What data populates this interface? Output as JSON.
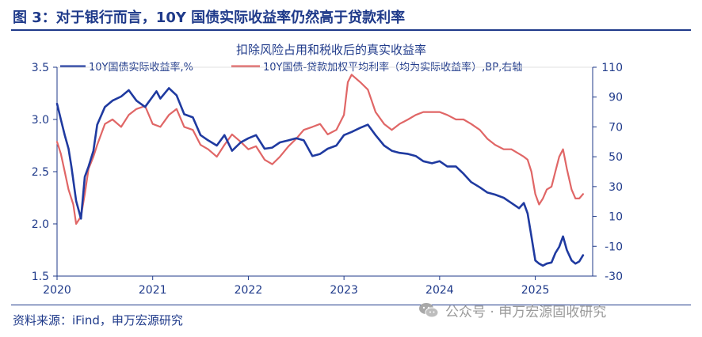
{
  "header": {
    "title": "图 3：对于银行而言，10Y 国债实际收益率仍然高于贷款利率"
  },
  "footer": {
    "source": "资料来源：iFind，申万宏源研究",
    "watermark": "公众号 · 申万宏源固收研究"
  },
  "chart_data": {
    "type": "line",
    "title": "扣除风险占用和税收后的真实收益率",
    "xlabel": "",
    "ylabel": "",
    "x_ticks": [
      "2020",
      "2021",
      "2022",
      "2023",
      "2024",
      "2025"
    ],
    "x_range": [
      2020.0,
      2025.6
    ],
    "y_left": {
      "ticks": [
        "1.5",
        "2.0",
        "2.5",
        "3.0",
        "3.5"
      ],
      "range": [
        1.5,
        3.5
      ]
    },
    "y_right": {
      "ticks": [
        "-30",
        "-10",
        "10",
        "30",
        "50",
        "70",
        "90",
        "110"
      ],
      "range": [
        -30,
        110
      ]
    },
    "legend_position": "top",
    "grid": false,
    "series": [
      {
        "name": "10Y国债实际收益率,%",
        "axis": "left",
        "color": "#1f3aa0",
        "x": [
          2020.0,
          2020.04,
          2020.08,
          2020.12,
          2020.15,
          2020.2,
          2020.25,
          2020.29,
          2020.33,
          2020.38,
          2020.42,
          2020.5,
          2020.58,
          2020.67,
          2020.75,
          2020.83,
          2020.92,
          2021.0,
          2021.04,
          2021.08,
          2021.17,
          2021.25,
          2021.33,
          2021.42,
          2021.5,
          2021.58,
          2021.67,
          2021.75,
          2021.83,
          2021.92,
          2022.0,
          2022.08,
          2022.17,
          2022.25,
          2022.33,
          2022.42,
          2022.5,
          2022.58,
          2022.67,
          2022.75,
          2022.83,
          2022.92,
          2023.0,
          2023.08,
          2023.17,
          2023.25,
          2023.33,
          2023.42,
          2023.5,
          2023.58,
          2023.67,
          2023.75,
          2023.83,
          2023.92,
          2024.0,
          2024.08,
          2024.17,
          2024.25,
          2024.33,
          2024.42,
          2024.5,
          2024.58,
          2024.67,
          2024.75,
          2024.83,
          2024.88,
          2024.92,
          2024.96,
          2025.0,
          2025.04,
          2025.08,
          2025.12,
          2025.17,
          2025.21,
          2025.25,
          2025.29,
          2025.33,
          2025.38,
          2025.42,
          2025.46,
          2025.5
        ],
        "values": [
          3.15,
          3.0,
          2.85,
          2.72,
          2.55,
          2.22,
          2.05,
          2.45,
          2.55,
          2.7,
          2.95,
          3.12,
          3.18,
          3.22,
          3.28,
          3.18,
          3.12,
          3.22,
          3.27,
          3.2,
          3.3,
          3.23,
          3.05,
          3.02,
          2.85,
          2.8,
          2.75,
          2.85,
          2.7,
          2.78,
          2.82,
          2.85,
          2.72,
          2.73,
          2.78,
          2.8,
          2.82,
          2.8,
          2.65,
          2.67,
          2.72,
          2.75,
          2.85,
          2.88,
          2.92,
          2.95,
          2.85,
          2.75,
          2.7,
          2.68,
          2.67,
          2.65,
          2.6,
          2.58,
          2.6,
          2.55,
          2.55,
          2.48,
          2.4,
          2.35,
          2.3,
          2.28,
          2.25,
          2.2,
          2.15,
          2.2,
          2.1,
          1.88,
          1.65,
          1.62,
          1.6,
          1.62,
          1.63,
          1.72,
          1.78,
          1.88,
          1.75,
          1.65,
          1.62,
          1.64,
          1.7
        ]
      },
      {
        "name": "10Y国债-贷款加权平均利率（均为实际收益率）,BP,右轴",
        "axis": "right",
        "color": "#e06666",
        "x": [
          2020.0,
          2020.04,
          2020.08,
          2020.12,
          2020.17,
          2020.2,
          2020.25,
          2020.29,
          2020.33,
          2020.38,
          2020.42,
          2020.5,
          2020.58,
          2020.67,
          2020.75,
          2020.83,
          2020.92,
          2021.0,
          2021.08,
          2021.17,
          2021.25,
          2021.33,
          2021.42,
          2021.5,
          2021.58,
          2021.67,
          2021.75,
          2021.83,
          2021.92,
          2022.0,
          2022.08,
          2022.17,
          2022.25,
          2022.33,
          2022.42,
          2022.5,
          2022.58,
          2022.67,
          2022.75,
          2022.83,
          2022.92,
          2023.0,
          2023.04,
          2023.08,
          2023.17,
          2023.25,
          2023.33,
          2023.42,
          2023.5,
          2023.58,
          2023.67,
          2023.75,
          2023.83,
          2023.92,
          2024.0,
          2024.08,
          2024.17,
          2024.25,
          2024.33,
          2024.42,
          2024.5,
          2024.58,
          2024.67,
          2024.75,
          2024.83,
          2024.88,
          2024.92,
          2024.96,
          2025.0,
          2025.04,
          2025.08,
          2025.12,
          2025.17,
          2025.21,
          2025.25,
          2025.29,
          2025.33,
          2025.38,
          2025.42,
          2025.46,
          2025.5
        ],
        "values": [
          60,
          52,
          40,
          28,
          18,
          5,
          10,
          25,
          42,
          50,
          58,
          72,
          75,
          70,
          78,
          82,
          84,
          72,
          70,
          78,
          82,
          70,
          68,
          58,
          55,
          50,
          58,
          65,
          60,
          55,
          57,
          48,
          45,
          50,
          57,
          62,
          68,
          70,
          72,
          65,
          68,
          78,
          100,
          105,
          100,
          95,
          80,
          72,
          68,
          72,
          75,
          78,
          80,
          80,
          80,
          78,
          75,
          75,
          72,
          68,
          62,
          58,
          55,
          55,
          52,
          50,
          48,
          40,
          25,
          18,
          22,
          28,
          30,
          40,
          50,
          55,
          42,
          28,
          22,
          22,
          25
        ]
      }
    ]
  }
}
